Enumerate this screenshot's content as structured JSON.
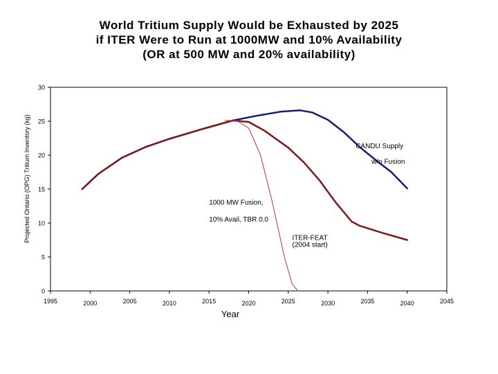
{
  "title_lines": [
    "World Tritium Supply Would be Exhausted by 2025",
    "if ITER Were to Run at 1000MW and 10% Availability",
    "(OR at 500 MW and 20% availability)"
  ],
  "chart_data": {
    "type": "line",
    "xlabel": "Year",
    "ylabel": "Projected Ontario (OPG) Tritium Inventory (kg)",
    "xlim": [
      1995,
      2045
    ],
    "ylim": [
      0,
      30
    ],
    "x_ticks": [
      1995,
      2000,
      2005,
      2010,
      2015,
      2020,
      2025,
      2030,
      2035,
      2040,
      2045
    ],
    "y_ticks": [
      0,
      5,
      10,
      15,
      20,
      25,
      30
    ],
    "grid": false,
    "legend": "none",
    "series": [
      {
        "name": "CANDU Supply w/o Fusion",
        "color": "#1a1a6e",
        "points": [
          [
            1999,
            15
          ],
          [
            2001,
            17.2
          ],
          [
            2004,
            19.6
          ],
          [
            2007,
            21.2
          ],
          [
            2010,
            22.4
          ],
          [
            2014,
            23.8
          ],
          [
            2018,
            25.1
          ],
          [
            2021,
            25.8
          ],
          [
            2024,
            26.4
          ],
          [
            2026.5,
            26.6
          ],
          [
            2028,
            26.3
          ],
          [
            2030,
            25.2
          ],
          [
            2032,
            23.4
          ],
          [
            2034,
            21.2
          ],
          [
            2036,
            19.3
          ],
          [
            2038,
            17.5
          ],
          [
            2040,
            15.1
          ]
        ]
      },
      {
        "name": "ITER-FEAT (2004 start)",
        "color": "#7a1a1a",
        "points": [
          [
            1999,
            15
          ],
          [
            2001,
            17.2
          ],
          [
            2004,
            19.6
          ],
          [
            2007,
            21.2
          ],
          [
            2010,
            22.4
          ],
          [
            2014,
            23.8
          ],
          [
            2018,
            25.1
          ],
          [
            2020,
            24.9
          ],
          [
            2022,
            23.6
          ],
          [
            2025,
            21.1
          ],
          [
            2027,
            18.9
          ],
          [
            2029,
            16.2
          ],
          [
            2031,
            13
          ],
          [
            2033,
            10.2
          ],
          [
            2034,
            9.6
          ],
          [
            2037,
            8.5
          ],
          [
            2040,
            7.5
          ]
        ]
      },
      {
        "name": "1000 MW Fusion, 10% Avail, TBR 0.0",
        "color": "#c0392b",
        "points": [
          [
            2017,
            25.1
          ],
          [
            2018.5,
            25.1
          ],
          [
            2020,
            24
          ],
          [
            2021.5,
            20
          ],
          [
            2023,
            13
          ],
          [
            2024.5,
            5
          ],
          [
            2025.5,
            1
          ],
          [
            2026.2,
            0
          ]
        ]
      }
    ],
    "annotations": [
      {
        "text": "CANDU Supply",
        "x": 2033.5,
        "y": 21
      },
      {
        "text": "w/o Fusion",
        "x": 2035.5,
        "y": 18.7
      },
      {
        "text": "1000 MW Fusion,",
        "x": 2015,
        "y": 12.7
      },
      {
        "text": "10% Avail, TBR 0.0",
        "x": 2015,
        "y": 10.2
      },
      {
        "text": "ITER-FEAT",
        "x": 2025.5,
        "y": 7.5
      },
      {
        "text": "(2004 start)",
        "x": 2025.5,
        "y": 6.5
      }
    ]
  }
}
